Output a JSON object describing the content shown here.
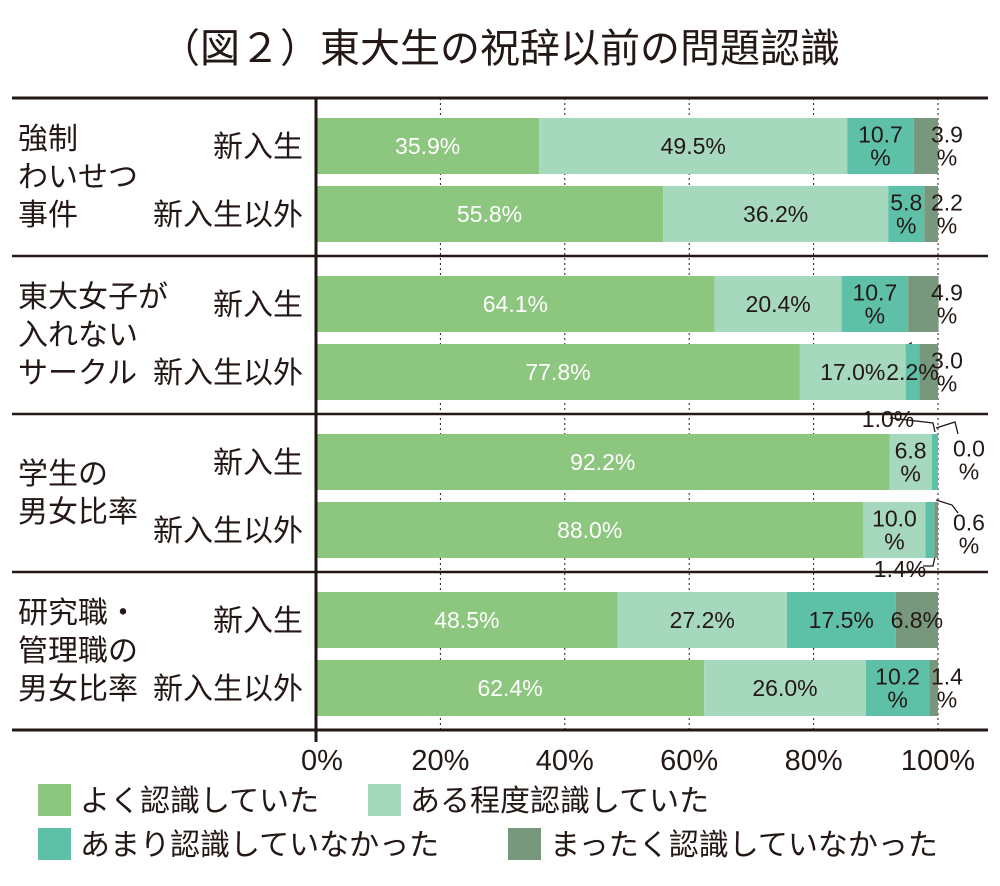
{
  "chart_data": {
    "type": "bar",
    "stacked": true,
    "orientation": "horizontal",
    "title": "（図２）東大生の祝辞以前の問題認識",
    "xlim": [
      0,
      100
    ],
    "x_ticks": [
      "0%",
      "20%",
      "40%",
      "60%",
      "80%",
      "100%"
    ],
    "legend_position": "bottom",
    "series": [
      {
        "name": "よく認識していた",
        "color": "#8cc67f"
      },
      {
        "name": "ある程度認識していた",
        "color": "#a6d8bd"
      },
      {
        "name": "あまり認識していなかった",
        "color": "#5fc0a8"
      },
      {
        "name": "まったく認識していなかった",
        "color": "#78987d"
      }
    ],
    "groups": [
      {
        "label": [
          "強制",
          "わいせつ",
          "事件"
        ],
        "rows": [
          {
            "label": "新入生",
            "values": [
              35.9,
              49.5,
              10.7,
              3.9
            ],
            "labels": [
              [
                "35.9%"
              ],
              [
                "49.5%"
              ],
              [
                "10.7",
                "%"
              ],
              [
                "3.9",
                "%"
              ]
            ]
          },
          {
            "label": "新入生以外",
            "values": [
              55.8,
              36.2,
              5.8,
              2.2
            ],
            "labels": [
              [
                "55.8%"
              ],
              [
                "36.2%"
              ],
              [
                "5.8",
                "%"
              ],
              [
                "2.2",
                "%"
              ]
            ]
          }
        ]
      },
      {
        "label": [
          "東大女子が",
          "入れない",
          "サークル"
        ],
        "rows": [
          {
            "label": "新入生",
            "values": [
              64.1,
              20.4,
              10.7,
              4.9
            ],
            "labels": [
              [
                "64.1%"
              ],
              [
                "20.4%"
              ],
              [
                "10.7",
                "%"
              ],
              [
                "4.9",
                "%"
              ]
            ]
          },
          {
            "label": "新入生以外",
            "values": [
              77.8,
              17.0,
              2.2,
              3.0
            ],
            "labels": [
              [
                "77.8%"
              ],
              [
                "17.0%"
              ],
              [
                "2.2%"
              ],
              [
                "3.0",
                "%"
              ]
            ]
          }
        ]
      },
      {
        "label": [
          "学生の",
          "男女比率"
        ],
        "rows": [
          {
            "label": "新入生",
            "values": [
              92.2,
              6.8,
              1.0,
              0.0
            ],
            "labels": [
              [
                "92.2%"
              ],
              [
                "6.8",
                "%"
              ],
              [
                "1.0%"
              ],
              [
                "0.0",
                "%"
              ]
            ]
          },
          {
            "label": "新入生以外",
            "values": [
              88.0,
              10.0,
              1.4,
              0.6
            ],
            "labels": [
              [
                "88.0%"
              ],
              [
                "10.0",
                "%"
              ],
              [
                "1.4%"
              ],
              [
                "0.6",
                "%"
              ]
            ]
          }
        ]
      },
      {
        "label": [
          "研究職・",
          "管理職の",
          "男女比率"
        ],
        "rows": [
          {
            "label": "新入生",
            "values": [
              48.5,
              27.2,
              17.5,
              6.8
            ],
            "labels": [
              [
                "48.5%"
              ],
              [
                "27.2%"
              ],
              [
                "17.5%"
              ],
              [
                "6.8%"
              ]
            ]
          },
          {
            "label": "新入生以外",
            "values": [
              62.4,
              26.0,
              10.2,
              1.4
            ],
            "labels": [
              [
                "62.4%"
              ],
              [
                "26.0%"
              ],
              [
                "10.2",
                "%"
              ],
              [
                "1.4",
                "%"
              ]
            ]
          }
        ]
      }
    ]
  }
}
